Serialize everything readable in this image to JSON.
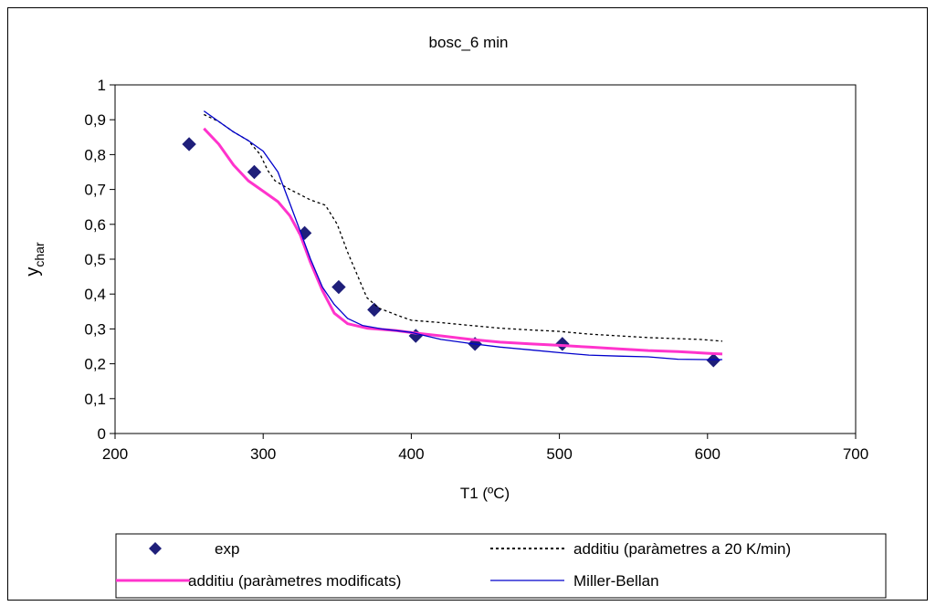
{
  "chart_data": {
    "type": "line",
    "title": "bosc_6 min",
    "xlabel": "T1 (ºC)",
    "ylabel": "y",
    "ylabel_sub": "char",
    "xlim": [
      200,
      700
    ],
    "ylim": [
      0,
      1
    ],
    "x_ticks": [
      "200",
      "300",
      "400",
      "500",
      "600",
      "700"
    ],
    "x_tick_values": [
      200,
      300,
      400,
      500,
      600,
      700
    ],
    "y_ticks": [
      "0",
      "0,1",
      "0,2",
      "0,3",
      "0,4",
      "0,5",
      "0,6",
      "0,7",
      "0,8",
      "0,9",
      "1"
    ],
    "y_tick_values": [
      0,
      0.1,
      0.2,
      0.3,
      0.4,
      0.5,
      0.6,
      0.7,
      0.8,
      0.9,
      1
    ],
    "grid": false,
    "legend_position": "bottom",
    "series": [
      {
        "name": "exp",
        "kind": "scatter",
        "color": "#1f1f7a",
        "marker": "diamond",
        "points": [
          [
            250,
            0.83
          ],
          [
            294,
            0.75
          ],
          [
            328,
            0.575
          ],
          [
            351,
            0.42
          ],
          [
            375,
            0.355
          ],
          [
            403,
            0.28
          ],
          [
            443,
            0.257
          ],
          [
            502,
            0.257
          ],
          [
            604,
            0.21
          ]
        ]
      },
      {
        "name": "additiu (paràmetres a 20 K/min)",
        "kind": "line",
        "color": "#000000",
        "dash": "dotted",
        "points": [
          [
            260,
            0.915
          ],
          [
            270,
            0.895
          ],
          [
            280,
            0.865
          ],
          [
            290,
            0.84
          ],
          [
            298,
            0.8
          ],
          [
            303,
            0.755
          ],
          [
            308,
            0.725
          ],
          [
            318,
            0.7
          ],
          [
            325,
            0.685
          ],
          [
            332,
            0.67
          ],
          [
            342,
            0.655
          ],
          [
            350,
            0.6
          ],
          [
            357,
            0.52
          ],
          [
            363,
            0.46
          ],
          [
            370,
            0.39
          ],
          [
            378,
            0.36
          ],
          [
            390,
            0.34
          ],
          [
            400,
            0.325
          ],
          [
            420,
            0.318
          ],
          [
            440,
            0.31
          ],
          [
            460,
            0.302
          ],
          [
            480,
            0.297
          ],
          [
            500,
            0.293
          ],
          [
            520,
            0.285
          ],
          [
            540,
            0.28
          ],
          [
            560,
            0.275
          ],
          [
            580,
            0.272
          ],
          [
            595,
            0.27
          ],
          [
            610,
            0.265
          ]
        ]
      },
      {
        "name": "additiu (paràmetres modificats)",
        "kind": "line",
        "color": "#ff33cc",
        "dash": "solid",
        "points": [
          [
            260,
            0.875
          ],
          [
            270,
            0.83
          ],
          [
            280,
            0.77
          ],
          [
            290,
            0.725
          ],
          [
            300,
            0.695
          ],
          [
            310,
            0.665
          ],
          [
            318,
            0.625
          ],
          [
            325,
            0.57
          ],
          [
            332,
            0.49
          ],
          [
            340,
            0.41
          ],
          [
            348,
            0.345
          ],
          [
            357,
            0.315
          ],
          [
            370,
            0.302
          ],
          [
            390,
            0.295
          ],
          [
            403,
            0.288
          ],
          [
            420,
            0.28
          ],
          [
            440,
            0.27
          ],
          [
            460,
            0.262
          ],
          [
            480,
            0.257
          ],
          [
            500,
            0.253
          ],
          [
            520,
            0.248
          ],
          [
            540,
            0.243
          ],
          [
            560,
            0.238
          ],
          [
            580,
            0.235
          ],
          [
            600,
            0.23
          ],
          [
            610,
            0.228
          ]
        ]
      },
      {
        "name": "Miller-Bellan",
        "kind": "line",
        "color": "#0000cc",
        "dash": "solid",
        "points": [
          [
            260,
            0.925
          ],
          [
            270,
            0.895
          ],
          [
            280,
            0.865
          ],
          [
            290,
            0.84
          ],
          [
            300,
            0.81
          ],
          [
            310,
            0.75
          ],
          [
            318,
            0.66
          ],
          [
            325,
            0.58
          ],
          [
            332,
            0.5
          ],
          [
            340,
            0.42
          ],
          [
            348,
            0.37
          ],
          [
            357,
            0.33
          ],
          [
            367,
            0.31
          ],
          [
            380,
            0.3
          ],
          [
            400,
            0.29
          ],
          [
            420,
            0.27
          ],
          [
            440,
            0.258
          ],
          [
            460,
            0.248
          ],
          [
            480,
            0.24
          ],
          [
            500,
            0.232
          ],
          [
            520,
            0.225
          ],
          [
            540,
            0.222
          ],
          [
            560,
            0.22
          ],
          [
            580,
            0.213
          ],
          [
            600,
            0.212
          ],
          [
            610,
            0.212
          ]
        ]
      }
    ]
  }
}
